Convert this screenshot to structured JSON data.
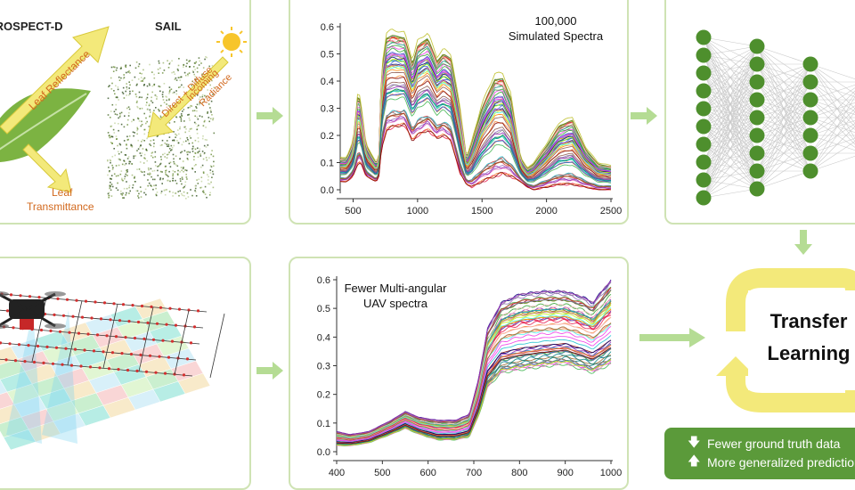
{
  "model_panel": {
    "prospect_label": "PROSPECT-D",
    "sail_label": "SAIL",
    "leaf_reflectance": "Leaf Reflectance",
    "leaf_transmittance_1": "Leaf",
    "leaf_transmittance_2": "Transmittance",
    "direct_diffuse": "Direct + Diffuse",
    "incoming_1": "Incoming",
    "incoming_2": "Radiance"
  },
  "colors": {
    "panel_border": "#cfe3b4",
    "arrow_green": "#b5dc94",
    "yellow": "#f3e97a",
    "node_green": "#4e8f2d",
    "orange_text": "#d2691e",
    "bullet_bg": "#5b9a3a"
  },
  "transfer": {
    "line1": "Transfer",
    "line2": "Learning"
  },
  "bullets": [
    {
      "icon": "arrow-down-icon",
      "glyph": "🡇",
      "text": "Fewer ground truth data"
    },
    {
      "icon": "arrow-up-icon",
      "glyph": "🡅",
      "text": "More generalized prediction"
    }
  ],
  "neural_net": {
    "layers": [
      10,
      9,
      7,
      5
    ]
  },
  "chart_data": [
    {
      "type": "line",
      "title": "100,000",
      "subtitle": "Simulated Spectra",
      "xlabel": "",
      "ylabel": "",
      "xlim": [
        400,
        2500
      ],
      "ylim": [
        0.0,
        0.6
      ],
      "x_ticks": [
        500,
        1000,
        1500,
        2000,
        2500
      ],
      "y_ticks": [
        0.0,
        0.1,
        0.2,
        0.3,
        0.4,
        0.5,
        0.6
      ],
      "series_count_drawn": 60,
      "envelope": {
        "x": [
          400,
          450,
          500,
          540,
          560,
          600,
          680,
          700,
          720,
          760,
          800,
          900,
          960,
          1000,
          1080,
          1150,
          1200,
          1260,
          1330,
          1380,
          1420,
          1500,
          1600,
          1660,
          1720,
          1800,
          1850,
          1900,
          2000,
          2100,
          2200,
          2300,
          2400,
          2500
        ],
        "low": [
          0.03,
          0.03,
          0.05,
          0.1,
          0.1,
          0.05,
          0.03,
          0.05,
          0.15,
          0.22,
          0.23,
          0.24,
          0.18,
          0.2,
          0.22,
          0.19,
          0.2,
          0.18,
          0.06,
          0.02,
          0.01,
          0.03,
          0.05,
          0.06,
          0.05,
          0.03,
          0.01,
          0.0,
          0.01,
          0.02,
          0.02,
          0.01,
          0.0,
          0.0
        ],
        "high": [
          0.12,
          0.12,
          0.18,
          0.38,
          0.32,
          0.17,
          0.1,
          0.13,
          0.45,
          0.58,
          0.59,
          0.58,
          0.48,
          0.55,
          0.58,
          0.49,
          0.52,
          0.5,
          0.3,
          0.12,
          0.18,
          0.32,
          0.43,
          0.43,
          0.36,
          0.12,
          0.08,
          0.1,
          0.17,
          0.25,
          0.27,
          0.16,
          0.1,
          0.09
        ]
      }
    },
    {
      "type": "line",
      "title": "Fewer Multi-angular",
      "subtitle": "UAV spectra",
      "xlabel": "",
      "ylabel": "",
      "xlim": [
        400,
        1000
      ],
      "ylim": [
        0.0,
        0.6
      ],
      "x_ticks": [
        400,
        500,
        600,
        700,
        800,
        900,
        1000
      ],
      "y_ticks": [
        0.0,
        0.1,
        0.2,
        0.3,
        0.4,
        0.5,
        0.6
      ],
      "series_count_drawn": 60,
      "envelope": {
        "x": [
          400,
          430,
          470,
          520,
          550,
          580,
          620,
          660,
          690,
          710,
          730,
          760,
          800,
          850,
          900,
          940,
          960,
          1000
        ],
        "low": [
          0.02,
          0.02,
          0.03,
          0.06,
          0.08,
          0.06,
          0.04,
          0.04,
          0.05,
          0.12,
          0.22,
          0.27,
          0.28,
          0.29,
          0.3,
          0.28,
          0.27,
          0.3
        ],
        "high": [
          0.07,
          0.06,
          0.07,
          0.11,
          0.14,
          0.12,
          0.11,
          0.11,
          0.13,
          0.25,
          0.43,
          0.52,
          0.55,
          0.56,
          0.56,
          0.54,
          0.52,
          0.6
        ]
      }
    }
  ]
}
